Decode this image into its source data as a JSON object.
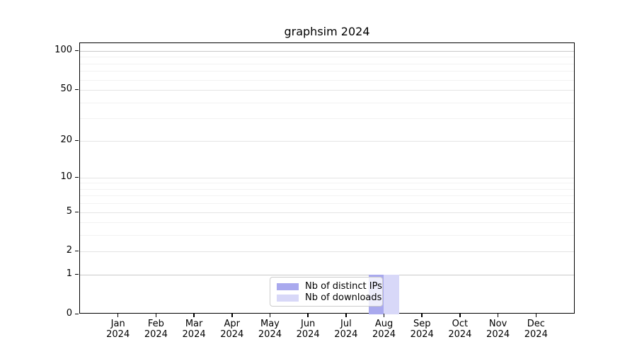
{
  "chart_data": {
    "type": "bar",
    "title": "graphsim 2024",
    "categories": [
      "Jan 2024",
      "Feb 2024",
      "Mar 2024",
      "Apr 2024",
      "May 2024",
      "Jun 2024",
      "Jul 2024",
      "Aug 2024",
      "Sep 2024",
      "Oct 2024",
      "Nov 2024",
      "Dec 2024"
    ],
    "series": [
      {
        "name": "Nb of distinct IPs",
        "color": "#a9a9ee",
        "values": [
          0,
          0,
          0,
          0,
          0,
          0,
          0,
          1,
          0,
          0,
          0,
          0
        ]
      },
      {
        "name": "Nb of downloads",
        "color": "#d8d8f8",
        "values": [
          0,
          0,
          0,
          0,
          0,
          0,
          0,
          1,
          0,
          0,
          0,
          0
        ]
      }
    ],
    "y_axis": {
      "scale": "log10(value+1)",
      "major_ticks": [
        0,
        1,
        2,
        5,
        10,
        20,
        50,
        100
      ],
      "minor_gridlines": [
        3,
        4,
        6,
        7,
        8,
        9,
        30,
        40,
        60,
        70,
        80,
        90
      ]
    },
    "x_axis": {
      "tick_label_lines": 2
    },
    "legend": {
      "items": [
        "Nb of distinct IPs",
        "Nb of downloads"
      ]
    },
    "grid": "horizontal",
    "colors": {
      "major_grid": "#e4e4e4",
      "emphasis_grid": "#c8c8c8",
      "minor_grid": "#f2f2f2",
      "axis": "#000000",
      "background": "#ffffff"
    }
  }
}
